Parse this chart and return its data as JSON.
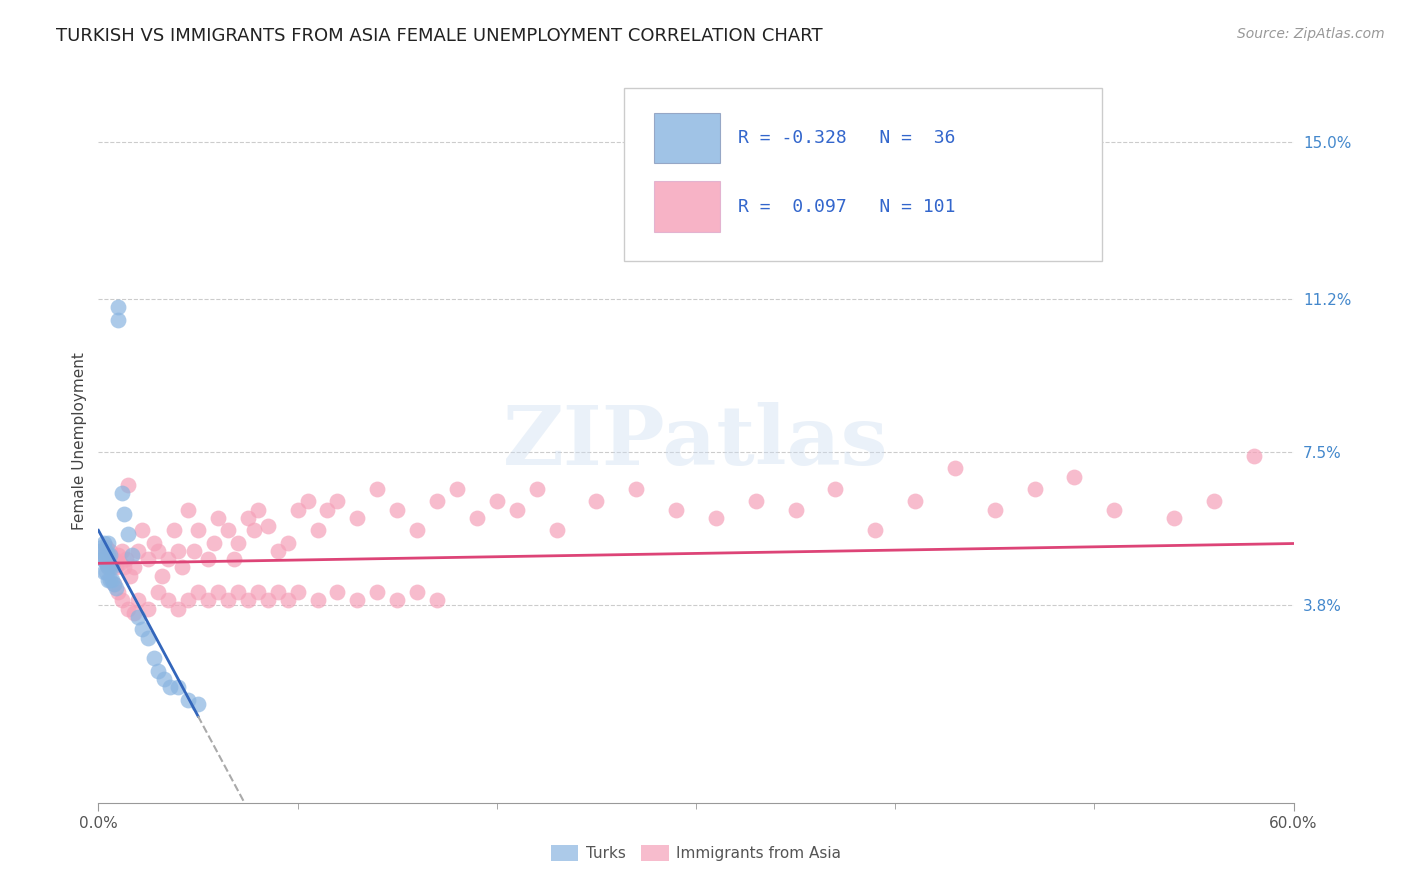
{
  "title": "TURKISH VS IMMIGRANTS FROM ASIA FEMALE UNEMPLOYMENT CORRELATION CHART",
  "source": "Source: ZipAtlas.com",
  "ylabel": "Female Unemployment",
  "xlim": [
    0.0,
    0.6
  ],
  "ylim": [
    -0.01,
    0.165
  ],
  "yticks": [
    0.038,
    0.075,
    0.112,
    0.15
  ],
  "ytick_labels": [
    "3.8%",
    "7.5%",
    "11.2%",
    "15.0%"
  ],
  "xtick_labels": [
    "0.0%",
    "60.0%"
  ],
  "xtick_pos": [
    0.0,
    0.6
  ],
  "grid_color": "#cccccc",
  "background_color": "#ffffff",
  "turks_color": "#89b4e0",
  "turks_color_solid": "#6699cc",
  "asia_color": "#f5a0b8",
  "asia_color_solid": "#ee7799",
  "turks_label": "Turks",
  "asia_label": "Immigrants from Asia",
  "R_turks": -0.328,
  "N_turks": 36,
  "R_asia": 0.097,
  "N_asia": 101,
  "watermark": "ZIPatlas",
  "title_fontsize": 13,
  "source_fontsize": 10,
  "axis_label_fontsize": 11,
  "tick_fontsize": 11,
  "legend_fontsize": 13,
  "turks_line_color": "#3366bb",
  "asia_line_color": "#dd4477",
  "turks_slope": -0.9,
  "turks_intercept": 0.056,
  "asia_slope": 0.008,
  "asia_intercept": 0.048,
  "turks_x": [
    0.001,
    0.002,
    0.002,
    0.003,
    0.003,
    0.003,
    0.004,
    0.004,
    0.004,
    0.005,
    0.005,
    0.005,
    0.005,
    0.006,
    0.006,
    0.006,
    0.007,
    0.007,
    0.008,
    0.009,
    0.01,
    0.01,
    0.012,
    0.013,
    0.015,
    0.017,
    0.02,
    0.022,
    0.025,
    0.028,
    0.03,
    0.033,
    0.036,
    0.04,
    0.045,
    0.05
  ],
  "turks_y": [
    0.051,
    0.049,
    0.052,
    0.046,
    0.049,
    0.053,
    0.046,
    0.048,
    0.051,
    0.044,
    0.047,
    0.05,
    0.053,
    0.044,
    0.047,
    0.05,
    0.044,
    0.047,
    0.043,
    0.042,
    0.107,
    0.11,
    0.065,
    0.06,
    0.055,
    0.05,
    0.035,
    0.032,
    0.03,
    0.025,
    0.022,
    0.02,
    0.018,
    0.018,
    0.015,
    0.014
  ],
  "asia_x": [
    0.003,
    0.004,
    0.005,
    0.006,
    0.008,
    0.009,
    0.01,
    0.011,
    0.012,
    0.013,
    0.014,
    0.015,
    0.016,
    0.018,
    0.02,
    0.022,
    0.025,
    0.028,
    0.03,
    0.032,
    0.035,
    0.038,
    0.04,
    0.042,
    0.045,
    0.048,
    0.05,
    0.055,
    0.058,
    0.06,
    0.065,
    0.068,
    0.07,
    0.075,
    0.078,
    0.08,
    0.085,
    0.09,
    0.095,
    0.1,
    0.105,
    0.11,
    0.115,
    0.12,
    0.13,
    0.14,
    0.15,
    0.16,
    0.17,
    0.18,
    0.19,
    0.2,
    0.21,
    0.22,
    0.23,
    0.25,
    0.27,
    0.29,
    0.31,
    0.33,
    0.35,
    0.37,
    0.39,
    0.41,
    0.43,
    0.45,
    0.47,
    0.49,
    0.51,
    0.54,
    0.56,
    0.58,
    0.008,
    0.01,
    0.012,
    0.015,
    0.018,
    0.02,
    0.025,
    0.03,
    0.035,
    0.04,
    0.045,
    0.05,
    0.055,
    0.06,
    0.065,
    0.07,
    0.075,
    0.08,
    0.085,
    0.09,
    0.095,
    0.1,
    0.11,
    0.12,
    0.13,
    0.14,
    0.15,
    0.16,
    0.17
  ],
  "asia_y": [
    0.05,
    0.052,
    0.047,
    0.051,
    0.049,
    0.047,
    0.05,
    0.048,
    0.051,
    0.047,
    0.049,
    0.067,
    0.045,
    0.047,
    0.051,
    0.056,
    0.049,
    0.053,
    0.051,
    0.045,
    0.049,
    0.056,
    0.051,
    0.047,
    0.061,
    0.051,
    0.056,
    0.049,
    0.053,
    0.059,
    0.056,
    0.049,
    0.053,
    0.059,
    0.056,
    0.061,
    0.057,
    0.051,
    0.053,
    0.061,
    0.063,
    0.056,
    0.061,
    0.063,
    0.059,
    0.066,
    0.061,
    0.056,
    0.063,
    0.066,
    0.059,
    0.063,
    0.061,
    0.066,
    0.056,
    0.063,
    0.066,
    0.061,
    0.059,
    0.063,
    0.061,
    0.066,
    0.056,
    0.063,
    0.071,
    0.061,
    0.066,
    0.069,
    0.061,
    0.059,
    0.063,
    0.074,
    0.043,
    0.041,
    0.039,
    0.037,
    0.036,
    0.039,
    0.037,
    0.041,
    0.039,
    0.037,
    0.039,
    0.041,
    0.039,
    0.041,
    0.039,
    0.041,
    0.039,
    0.041,
    0.039,
    0.041,
    0.039,
    0.041,
    0.039,
    0.041,
    0.039,
    0.041,
    0.039,
    0.041,
    0.039
  ]
}
